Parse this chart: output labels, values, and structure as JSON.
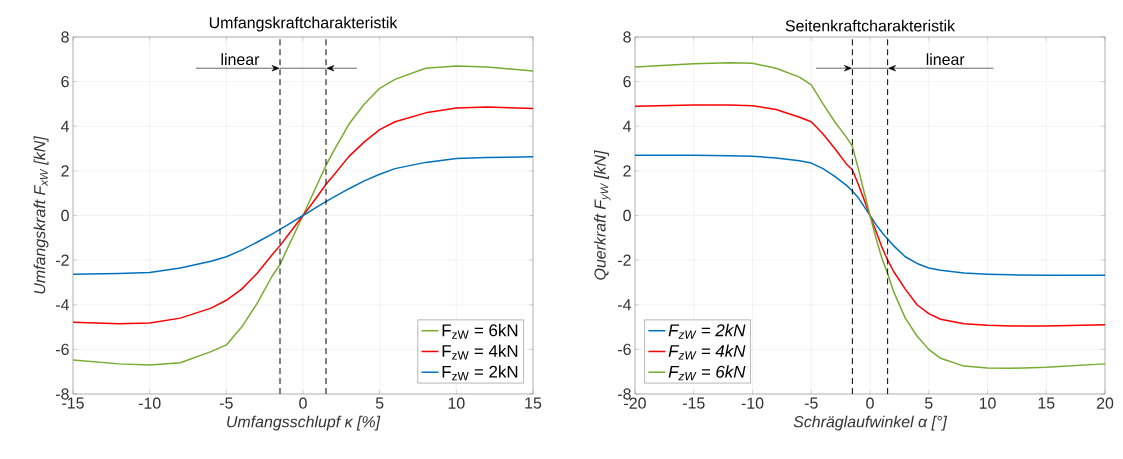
{
  "chart_data": [
    {
      "type": "line",
      "title": "Umfangskraftcharakteristik",
      "xlabel": "Umfangsschlupf κ [%]",
      "ylabel": "Umfangskraft F$_{xW}$ [kN]",
      "xlim": [
        -15,
        15
      ],
      "ylim": [
        -8,
        8
      ],
      "xticks": [
        -15,
        -10,
        -5,
        0,
        5,
        10,
        15
      ],
      "yticks": [
        -8,
        -6,
        -4,
        -2,
        0,
        2,
        4,
        6,
        8
      ],
      "grid": true,
      "legend": "bottom right",
      "annotations": [
        "linear"
      ],
      "ref_lines": [
        {
          "axis": "x",
          "value": -1.5,
          "color": "#000000",
          "line_style": "dashed"
        },
        {
          "axis": "x",
          "value": 1.5,
          "color": "#000000",
          "line_style": "dashed"
        }
      ],
      "x": [
        -15,
        -12,
        -10,
        -8,
        -6,
        -5,
        -4,
        -3,
        -2,
        -1.5,
        -1,
        -0.5,
        0,
        0.5,
        1,
        1.5,
        2,
        3,
        4,
        5,
        6,
        8,
        10,
        12,
        15
      ],
      "series": [
        {
          "name": "F$_{zW}$ = 6kN",
          "color": "#77ac30",
          "values": [
            -6.48,
            -6.65,
            -6.7,
            -6.6,
            -6.1,
            -5.8,
            -5.0,
            -3.95,
            -2.7,
            -2.2,
            -1.45,
            -0.73,
            0,
            0.75,
            1.5,
            2.25,
            2.9,
            4.1,
            5.0,
            5.7,
            6.1,
            6.6,
            6.7,
            6.65,
            6.48
          ]
        },
        {
          "name": "F$_{zW}$ = 4kN",
          "color": "#ff0000",
          "values": [
            -4.78,
            -4.85,
            -4.82,
            -4.6,
            -4.15,
            -3.8,
            -3.3,
            -2.6,
            -1.75,
            -1.35,
            -0.9,
            -0.45,
            0,
            0.45,
            0.92,
            1.4,
            1.8,
            2.65,
            3.3,
            3.85,
            4.2,
            4.6,
            4.82,
            4.86,
            4.8
          ]
        },
        {
          "name": "F$_{zW}$ = 2kN",
          "color": "#0072bd",
          "values": [
            -2.63,
            -2.6,
            -2.55,
            -2.35,
            -2.05,
            -1.85,
            -1.55,
            -1.2,
            -0.82,
            -0.62,
            -0.42,
            -0.21,
            0,
            0.21,
            0.42,
            0.62,
            0.82,
            1.2,
            1.55,
            1.85,
            2.1,
            2.38,
            2.55,
            2.6,
            2.63
          ]
        }
      ]
    },
    {
      "type": "line",
      "title": "Seitenkraftcharakteristik",
      "xlabel": "Schräglaufwinkel α [°]",
      "ylabel": "Querkraft F$_{yW}$ [kN]",
      "xlim": [
        -20,
        20
      ],
      "ylim": [
        -8,
        8
      ],
      "xticks": [
        -20,
        -15,
        -10,
        -5,
        0,
        5,
        10,
        15,
        20
      ],
      "yticks": [
        -8,
        -6,
        -4,
        -2,
        0,
        2,
        4,
        6,
        8
      ],
      "grid": true,
      "legend": "bottom left",
      "annotations": [
        "linear"
      ],
      "ref_lines": [
        {
          "axis": "x",
          "value": -1.5,
          "color": "#000000",
          "line_style": "dashed"
        },
        {
          "axis": "x",
          "value": 1.5,
          "color": "#000000",
          "line_style": "dashed"
        }
      ],
      "x": [
        -20,
        -15,
        -12,
        -10,
        -8,
        -6,
        -5,
        -4,
        -3,
        -2,
        -1.5,
        -1,
        -0.5,
        0,
        0.5,
        1,
        1.5,
        2,
        3,
        4,
        5,
        6,
        8,
        10,
        12,
        15,
        20
      ],
      "series": [
        {
          "name": "F$_{zW}$ = 2kN",
          "color": "#0072bd",
          "values": [
            2.7,
            2.7,
            2.68,
            2.65,
            2.58,
            2.45,
            2.35,
            2.1,
            1.75,
            1.35,
            1.1,
            0.8,
            0.4,
            0,
            -0.4,
            -0.75,
            -1.05,
            -1.35,
            -1.85,
            -2.15,
            -2.35,
            -2.45,
            -2.58,
            -2.63,
            -2.66,
            -2.68,
            -2.68
          ]
        },
        {
          "name": "F$_{zW}$ = 4kN",
          "color": "#ff0000",
          "values": [
            4.9,
            4.95,
            4.95,
            4.92,
            4.75,
            4.4,
            4.2,
            3.65,
            3.0,
            2.3,
            2.05,
            1.4,
            0.7,
            0,
            -0.7,
            -1.4,
            -2.0,
            -2.5,
            -3.3,
            -4.0,
            -4.4,
            -4.65,
            -4.85,
            -4.92,
            -4.95,
            -4.95,
            -4.9
          ]
        },
        {
          "name": "F$_{zW}$ = 6kN",
          "color": "#77ac30",
          "values": [
            6.65,
            6.8,
            6.85,
            6.82,
            6.6,
            6.2,
            5.85,
            5.0,
            4.2,
            3.5,
            3.1,
            2.1,
            1.05,
            0,
            -1.0,
            -1.9,
            -2.6,
            -3.4,
            -4.6,
            -5.4,
            -6.0,
            -6.4,
            -6.75,
            -6.83,
            -6.85,
            -6.8,
            -6.65
          ]
        }
      ]
    }
  ]
}
